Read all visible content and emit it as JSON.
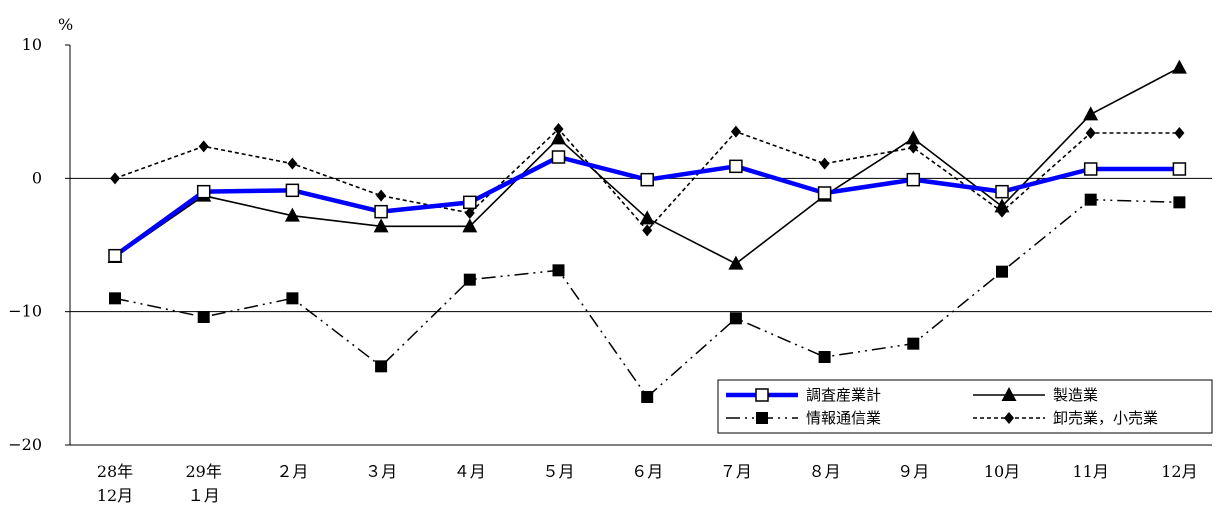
{
  "chart_data": {
    "type": "line",
    "unit_label": "%",
    "categories": [
      [
        "28年",
        "12月"
      ],
      [
        "29年",
        "１月"
      ],
      [
        "２月"
      ],
      [
        "３月"
      ],
      [
        "４月"
      ],
      [
        "５月"
      ],
      [
        "６月"
      ],
      [
        "７月"
      ],
      [
        "８月"
      ],
      [
        "９月"
      ],
      [
        "10月"
      ],
      [
        "11月"
      ],
      [
        "12月"
      ]
    ],
    "ylim": [
      -20,
      10
    ],
    "yticks": [
      10,
      0,
      -10,
      -20
    ],
    "ytick_labels": [
      "10",
      "0",
      "−10",
      "−20"
    ],
    "grid": "horizontal at 0 and −10",
    "legend_position": "bottom-right",
    "series": [
      {
        "name": "調査産業計",
        "color": "#0000ff",
        "style": "thick-solid",
        "marker": "open-square",
        "values": [
          -5.8,
          -1.0,
          -0.9,
          -2.5,
          -1.8,
          1.6,
          -0.1,
          0.9,
          -1.1,
          -0.1,
          -1.0,
          0.7,
          0.7
        ]
      },
      {
        "name": "製造業",
        "color": "#000000",
        "style": "solid",
        "marker": "triangle",
        "values": [
          -5.9,
          -1.3,
          -2.8,
          -3.6,
          -3.6,
          3.0,
          -3.0,
          -6.4,
          -1.3,
          3.0,
          -2.1,
          4.8,
          8.3
        ]
      },
      {
        "name": "情報通信業",
        "color": "#000000",
        "style": "dash-dot-dot",
        "marker": "filled-square",
        "values": [
          -9.0,
          -10.4,
          -9.0,
          -14.1,
          -7.6,
          -6.9,
          -16.4,
          -10.5,
          -13.4,
          -12.4,
          -7.0,
          -1.6,
          -1.8
        ]
      },
      {
        "name": "卸売業，小売業",
        "color": "#000000",
        "style": "short-dash",
        "marker": "diamond",
        "values": [
          0.0,
          2.4,
          1.1,
          -1.3,
          -2.6,
          3.7,
          -3.9,
          3.5,
          1.1,
          2.3,
          -2.5,
          3.4,
          3.4
        ]
      }
    ]
  }
}
